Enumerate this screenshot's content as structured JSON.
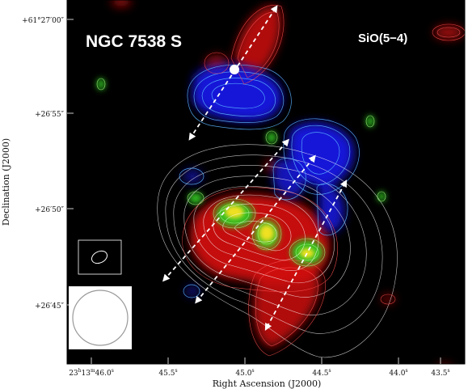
{
  "figure": {
    "title": "NGC 7538 S",
    "line_label": "SiO(5−4)",
    "x_axis_label": "Right Ascension (J2000)",
    "y_axis_label": "Declination (J2000)",
    "x_ticks": [
      {
        "h": "23",
        "m": "13",
        "s": "46.0",
        "sup_h": "h",
        "sup_m": "m",
        "sup_s": "s",
        "full": true
      },
      {
        "s": "45.5",
        "sup_s": "s"
      },
      {
        "s": "45.0",
        "sup_s": "s"
      },
      {
        "s": "44.5",
        "sup_s": "s"
      },
      {
        "s": "44.0",
        "sup_s": "s"
      },
      {
        "s": "43.5",
        "sup_s": "s"
      }
    ],
    "y_ticks": [
      {
        "sign": "+",
        "deg": "61",
        "min": "27",
        "sec": "00",
        "full": true
      },
      {
        "sign": "+",
        "min": "26",
        "sec": "55"
      },
      {
        "sign": "+",
        "min": "26",
        "sec": "50"
      },
      {
        "sign": "+",
        "min": "26",
        "sec": "45"
      }
    ],
    "colors": {
      "background": "#000000",
      "redshifted": "#e01010",
      "blueshifted": "#1a1ae0",
      "green": "#30c020",
      "yellow": "#f0e020",
      "contour_white": "#ffffff",
      "contour_cyan": "#60c0ff"
    }
  }
}
